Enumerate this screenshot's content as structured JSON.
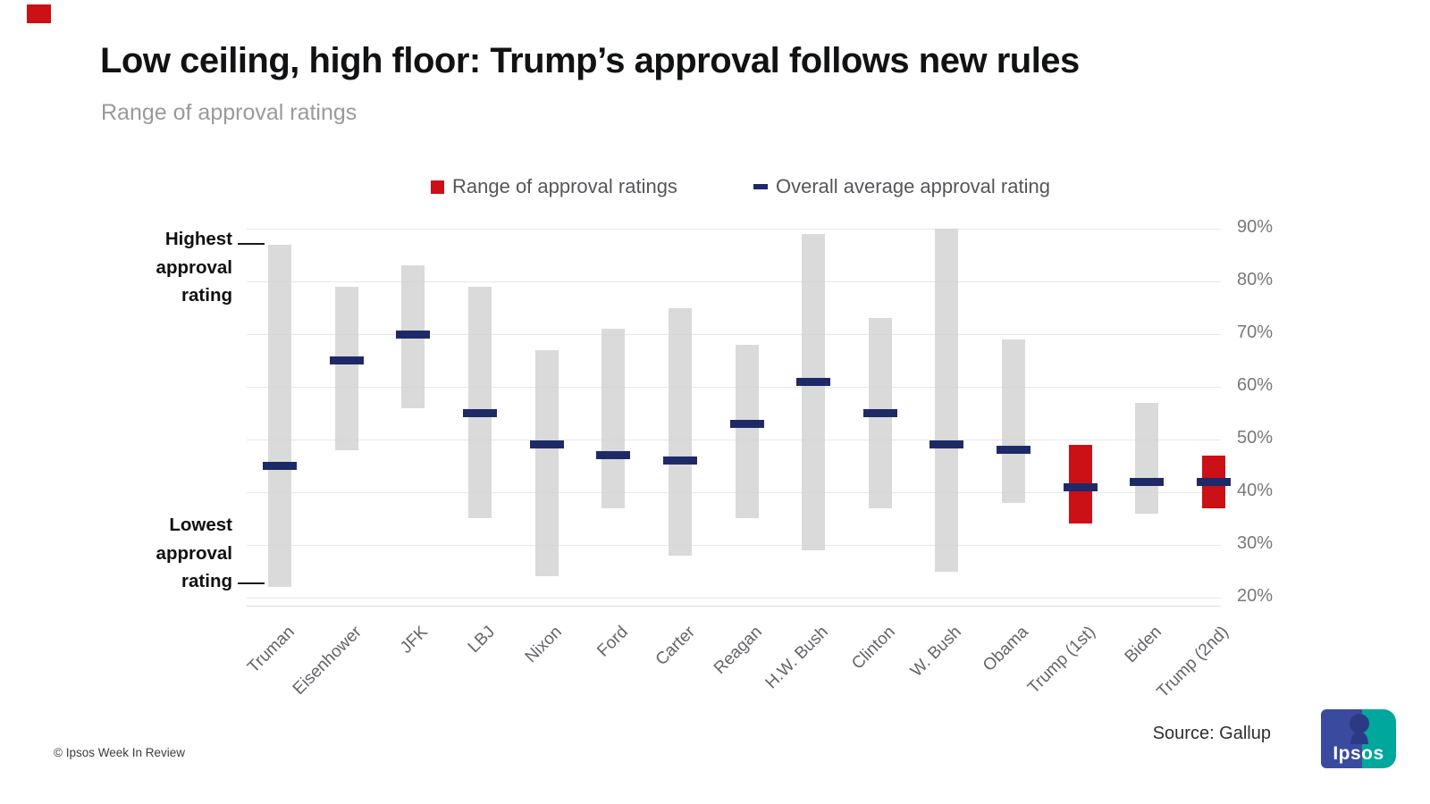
{
  "brand": {
    "corner_mark_color": "#cc1016",
    "footer_copyright": "© Ipsos Week In Review",
    "source": "Source: Gallup",
    "logo": {
      "text": "Ipsos",
      "navy": "#3a4b9f",
      "teal": "#00a79b",
      "silhouette": "#2c3a85"
    }
  },
  "header": {
    "title": "Low ceiling, high floor: Trump’s approval follows new rules",
    "subtitle": "Range of approval ratings"
  },
  "legend": {
    "range_label": "Range of approval ratings",
    "average_label": "Overall average approval rating"
  },
  "annotations": {
    "highest": [
      "Highest",
      "approval",
      "rating"
    ],
    "lowest": [
      "Lowest",
      "approval",
      "rating"
    ]
  },
  "chart_data": {
    "type": "bar",
    "subtype": "floating-range-bars-with-average-markers",
    "title": "Low ceiling, high floor: Trump’s approval follows new rules",
    "subtitle": "Range of approval ratings",
    "categories": [
      "Truman",
      "Eisenhower",
      "JFK",
      "LBJ",
      "Nixon",
      "Ford",
      "Carter",
      "Reagan",
      "H.W. Bush",
      "Clinton",
      "W. Bush",
      "Obama",
      "Trump (1st)",
      "Biden",
      "Trump (2nd)"
    ],
    "series": [
      {
        "name": "Lowest approval rating",
        "values": [
          22,
          48,
          56,
          35,
          24,
          37,
          28,
          35,
          29,
          37,
          25,
          38,
          34,
          36,
          37
        ]
      },
      {
        "name": "Highest approval rating",
        "values": [
          87,
          79,
          83,
          79,
          67,
          71,
          75,
          68,
          89,
          73,
          90,
          69,
          49,
          57,
          47
        ]
      },
      {
        "name": "Overall average approval rating",
        "values": [
          45,
          65,
          70,
          55,
          49,
          47,
          46,
          53,
          61,
          55,
          49,
          48,
          41,
          42,
          42
        ]
      }
    ],
    "highlighted_categories": [
      "Trump (1st)",
      "Trump (2nd)"
    ],
    "colors": {
      "range": "#d2d2d3",
      "range_highlight": "#cb1016",
      "average": "#1e2a68",
      "gridline": "#e8e8e9"
    },
    "ylim": [
      20,
      90
    ],
    "yticks": [
      90,
      80,
      70,
      60,
      50,
      40,
      30,
      20
    ],
    "ytick_suffix": "%",
    "grid": true,
    "legend_position": "top",
    "source": "Gallup"
  }
}
